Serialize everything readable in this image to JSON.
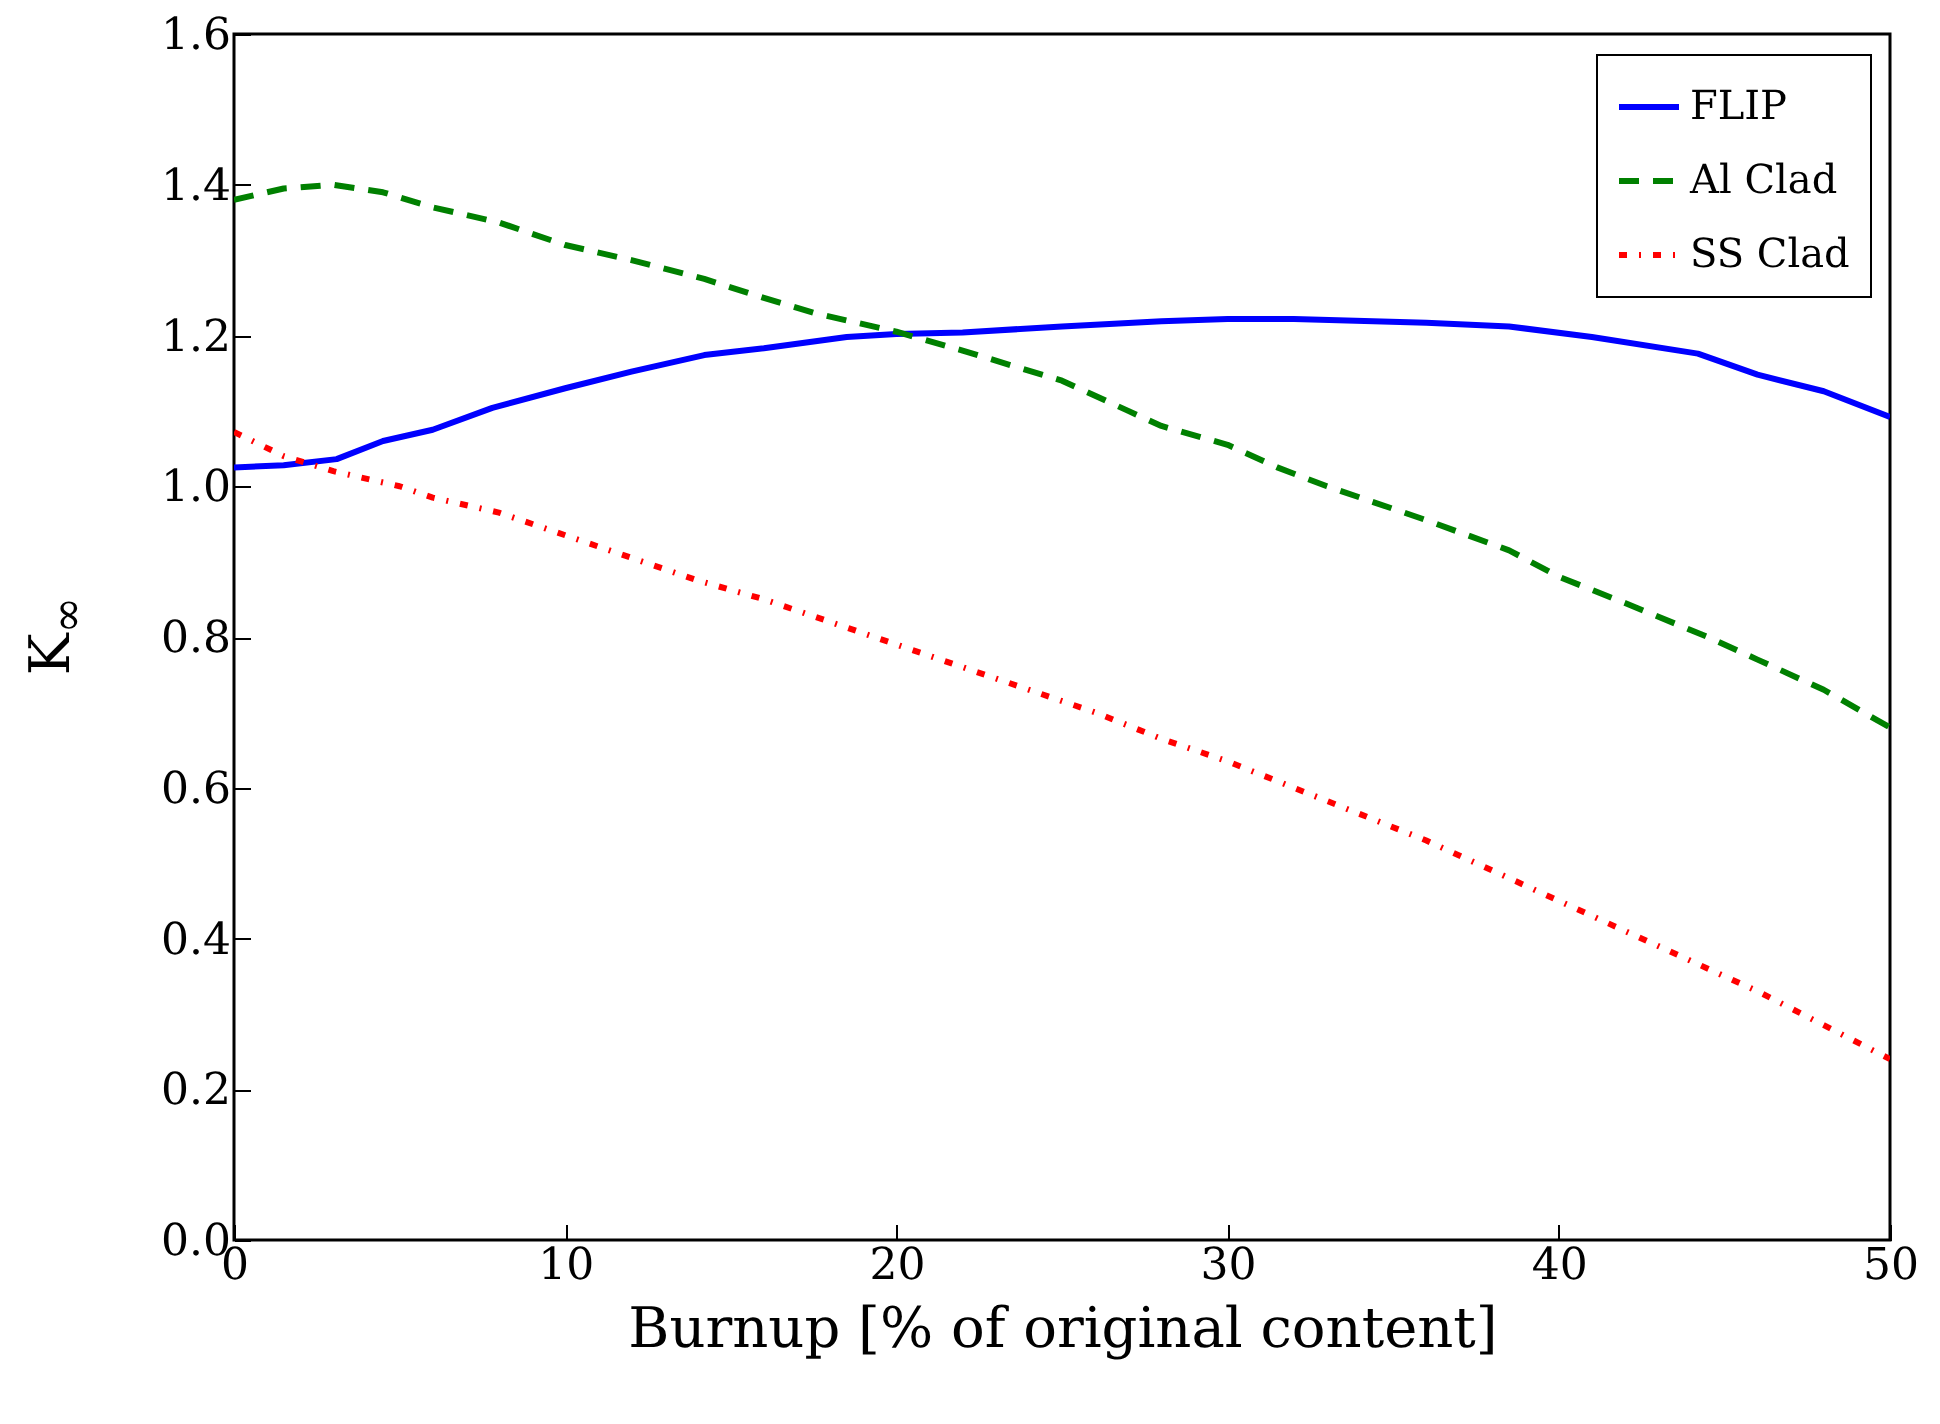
{
  "chart_data": {
    "type": "line",
    "xlabel": "Burnup [% of original content]",
    "ylabel": "K$_{∞}$",
    "xlim": [
      0,
      50
    ],
    "xticks": [
      0,
      10,
      20,
      30,
      40,
      50
    ],
    "ylim": [
      0,
      1.6
    ],
    "yticks": [
      {
        "value": 0,
        "label": "0.0"
      },
      0.2,
      0.4,
      0.6,
      0.8,
      {
        "value": 1,
        "label": "1.0"
      },
      1.2,
      1.4,
      1.6
    ],
    "grid": false,
    "legend": "top right",
    "series": [
      {
        "name": "FLIP",
        "color": "#0000ff",
        "line_style": "solid",
        "x": [
          0,
          1.5,
          3.1,
          4.5,
          6,
          7.8,
          10,
          12,
          14.2,
          16,
          18.5,
          20,
          22,
          25,
          28,
          30,
          32,
          36,
          38.5,
          41,
          44.2,
          46,
          48,
          50
        ],
        "values": [
          1.025,
          1.028,
          1.036,
          1.06,
          1.075,
          1.104,
          1.13,
          1.152,
          1.174,
          1.183,
          1.198,
          1.202,
          1.204,
          1.212,
          1.219,
          1.222,
          1.222,
          1.217,
          1.212,
          1.198,
          1.176,
          1.148,
          1.126,
          1.092
        ]
      },
      {
        "name": "Al Clad",
        "color": "#008000",
        "line_style": "dashed",
        "x": [
          0,
          1.5,
          3,
          4.5,
          6,
          8,
          10,
          12,
          14.2,
          16,
          17.5,
          20,
          22,
          25,
          27,
          28,
          30,
          31.5,
          33,
          36,
          38.5,
          40,
          42,
          44.5,
          46,
          48,
          50
        ],
        "values": [
          1.38,
          1.395,
          1.4,
          1.39,
          1.37,
          1.35,
          1.32,
          1.3,
          1.275,
          1.25,
          1.23,
          1.205,
          1.18,
          1.14,
          1.1,
          1.08,
          1.055,
          1.025,
          1.0,
          0.955,
          0.915,
          0.88,
          0.845,
          0.8,
          0.77,
          0.73,
          0.68
        ]
      },
      {
        "name": "SS Clad",
        "color": "#ff0000",
        "line_style": "dotted",
        "x": [
          0,
          1.5,
          3,
          5,
          6,
          8,
          10,
          12,
          14,
          16,
          18,
          20,
          22,
          24,
          26,
          28,
          30,
          32,
          34,
          36,
          38,
          40,
          42,
          44,
          46,
          48,
          50
        ],
        "values": [
          1.072,
          1.04,
          1.02,
          1.0,
          0.985,
          0.965,
          0.935,
          0.905,
          0.875,
          0.85,
          0.82,
          0.79,
          0.76,
          0.73,
          0.7,
          0.665,
          0.635,
          0.6,
          0.565,
          0.53,
          0.49,
          0.45,
          0.41,
          0.37,
          0.33,
          0.285,
          0.24
        ]
      }
    ]
  }
}
